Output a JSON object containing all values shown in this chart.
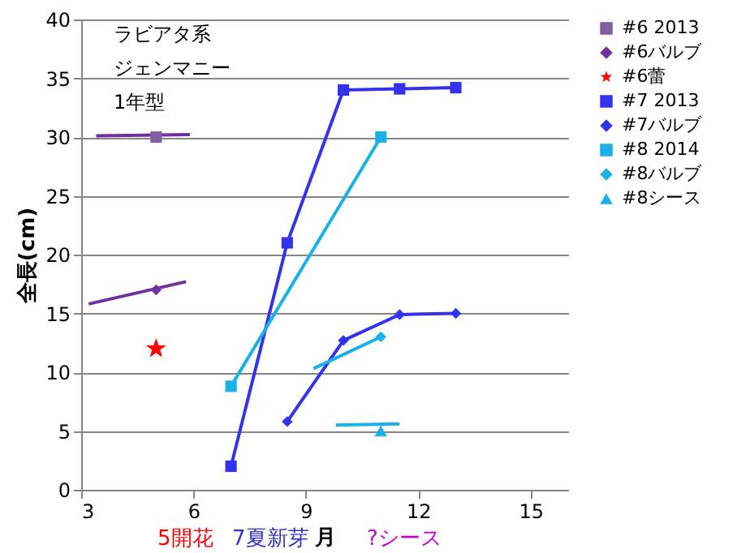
{
  "chart_data": {
    "type": "line",
    "xlabel": "月",
    "ylabel": "全長(cm)",
    "annotations": [
      "ラビアタ系",
      "ジェンマニー",
      "1年型",
      "5開花",
      "7夏新芽",
      "?シース"
    ],
    "xlim": [
      3,
      16
    ],
    "xticks": [
      3,
      6,
      9,
      12,
      15
    ],
    "ylim": [
      0,
      40
    ],
    "yticks": [
      0,
      5,
      10,
      15,
      20,
      25,
      30,
      35,
      40
    ],
    "grid": "y",
    "legend": "right",
    "series": [
      {
        "name": "#6 2013",
        "color": "#80609f",
        "marker": "square",
        "x": [
          5
        ],
        "values": [
          30
        ]
      },
      {
        "type": "line",
        "color": "#7030a0",
        "marker": "none",
        "x": [
          3.4,
          5.9
        ],
        "values": [
          30.1,
          30.2
        ]
      },
      {
        "name": "#6バルブ",
        "color": "#7030a0",
        "marker": "diamond",
        "x": [
          5
        ],
        "values": [
          17
        ]
      },
      {
        "type": "line",
        "color": "#7030a0",
        "marker": "none",
        "x": [
          3.2,
          5.8
        ],
        "values": [
          15.8,
          17.7
        ]
      },
      {
        "name": "#6蕾",
        "type": "scatter",
        "color": "#ff0000",
        "marker": "star",
        "x": [
          5
        ],
        "values": [
          12
        ]
      },
      {
        "name": "#7 2013",
        "color": "#3333ee",
        "marker": "square",
        "x": [
          7,
          8.5,
          10,
          11.5,
          13
        ],
        "values": [
          2,
          21,
          34,
          34.1,
          34.2
        ]
      },
      {
        "name": "#7バルブ",
        "color": "#3333ee",
        "marker": "diamond",
        "x": [
          8.5,
          10,
          11.5,
          13
        ],
        "values": [
          5.8,
          12.7,
          14.9,
          15
        ]
      },
      {
        "name": "#8 2014",
        "color": "#1ab0e8",
        "marker": "square",
        "x": [
          7,
          11
        ],
        "values": [
          8.8,
          30
        ]
      },
      {
        "name": "#8バルブ",
        "color": "#1ab0e8",
        "marker": "diamond",
        "x": [
          11
        ],
        "values": [
          13
        ]
      },
      {
        "type": "line",
        "color": "#1ab0e8",
        "marker": "none",
        "x": [
          9.2,
          11
        ],
        "values": [
          10.3,
          13
        ]
      },
      {
        "name": "#8シース",
        "color": "#1ab0e8",
        "marker": "triangle",
        "x": [
          11
        ],
        "values": [
          5
        ]
      },
      {
        "type": "line",
        "color": "#1ab0e8",
        "marker": "none",
        "x": [
          9.8,
          11.5
        ],
        "values": [
          5.5,
          5.6
        ]
      }
    ]
  }
}
